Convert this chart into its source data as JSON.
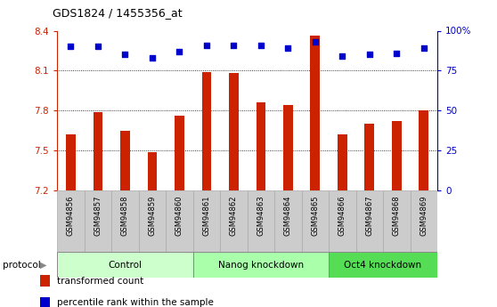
{
  "title": "GDS1824 / 1455356_at",
  "samples": [
    "GSM94856",
    "GSM94857",
    "GSM94858",
    "GSM94859",
    "GSM94860",
    "GSM94861",
    "GSM94862",
    "GSM94863",
    "GSM94864",
    "GSM94865",
    "GSM94866",
    "GSM94867",
    "GSM94868",
    "GSM94869"
  ],
  "bar_values": [
    7.62,
    7.79,
    7.65,
    7.49,
    7.76,
    8.09,
    8.08,
    7.86,
    7.84,
    8.36,
    7.62,
    7.7,
    7.72,
    7.8
  ],
  "bar_color": "#cc2200",
  "dot_values": [
    90,
    90,
    85,
    83,
    87,
    91,
    91,
    91,
    89,
    93,
    84,
    85,
    86,
    89
  ],
  "dot_color": "#0000cc",
  "ylim_left": [
    7.2,
    8.4
  ],
  "ylim_right": [
    0,
    100
  ],
  "yticks_left": [
    7.2,
    7.5,
    7.8,
    8.1,
    8.4
  ],
  "yticks_right": [
    0,
    25,
    50,
    75,
    100
  ],
  "ytick_labels_left": [
    "7.2",
    "7.5",
    "7.8",
    "8.1",
    "8.4"
  ],
  "ytick_labels_right": [
    "0",
    "25",
    "50",
    "75",
    "100%"
  ],
  "ylabel_left_color": "#cc2200",
  "ylabel_right_color": "#0000cc",
  "groups": [
    {
      "label": "Control",
      "start": 0,
      "end": 5,
      "color": "#ccffcc"
    },
    {
      "label": "Nanog knockdown",
      "start": 5,
      "end": 10,
      "color": "#aaffaa"
    },
    {
      "label": "Oct4 knockdown",
      "start": 10,
      "end": 14,
      "color": "#55dd55"
    }
  ],
  "protocol_label": "protocol",
  "legend": [
    {
      "label": "transformed count",
      "color": "#cc2200"
    },
    {
      "label": "percentile rank within the sample",
      "color": "#0000cc"
    }
  ],
  "tick_bg_color": "#cccccc"
}
